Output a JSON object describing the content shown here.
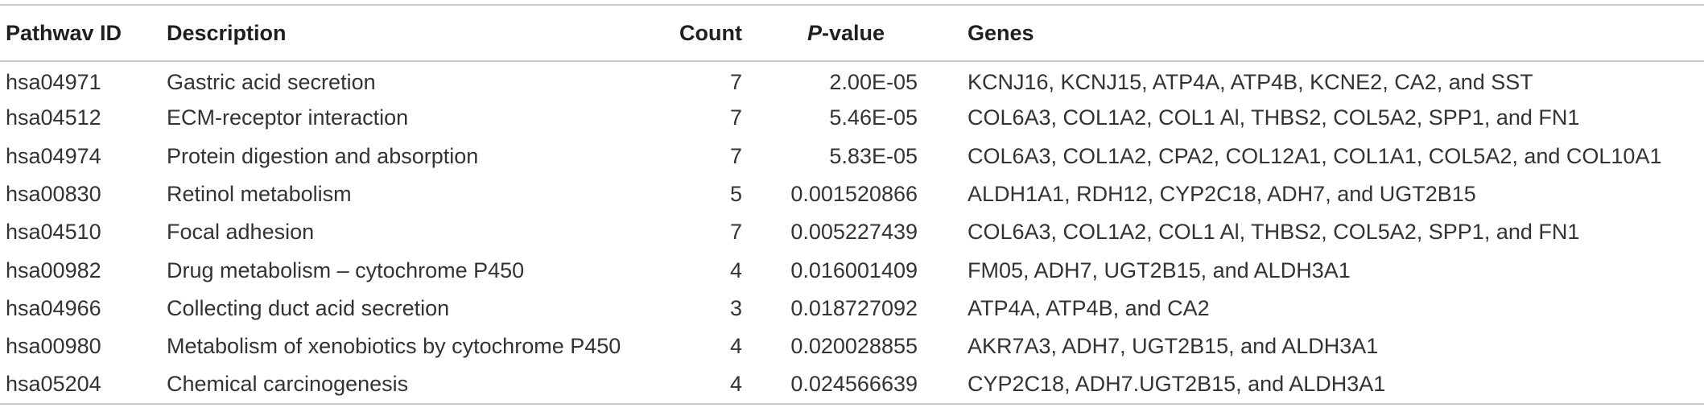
{
  "table": {
    "headers": {
      "pathway_id": "Pathwav ID",
      "description": "Description",
      "count": "Count",
      "pvalue_p": "P",
      "pvalue_rest": "-value",
      "genes": "Genes"
    },
    "rows": [
      {
        "id": "hsa04971",
        "description": "Gastric acid secretion",
        "count": "7",
        "pvalue": "2.00E-05",
        "genes": "KCNJ16, KCNJ15, ATP4A, ATP4B, KCNE2, CA2, and SST"
      },
      {
        "id": "hsa04512",
        "description": "ECM-receptor interaction",
        "count": "7",
        "pvalue": "5.46E-05",
        "genes": "COL6A3, COL1A2, COL1 Al, THBS2, COL5A2, SPP1, and FN1"
      },
      {
        "id": "hsa04974",
        "description": "Protein digestion and absorption",
        "count": "7",
        "pvalue": "5.83E-05",
        "genes": "COL6A3, COL1A2, CPA2, COL12A1, COL1A1, COL5A2, and COL10A1"
      },
      {
        "id": "hsa00830",
        "description": "Retinol metabolism",
        "count": "5",
        "pvalue": "0.001520866",
        "genes": "ALDH1A1, RDH12, CYP2C18, ADH7, and UGT2B15"
      },
      {
        "id": "hsa04510",
        "description": "Focal adhesion",
        "count": "7",
        "pvalue": "0.005227439",
        "genes": "COL6A3, COL1A2, COL1 Al, THBS2, COL5A2, SPP1, and FN1"
      },
      {
        "id": "hsa00982",
        "description": "Drug metabolism – cytochrome P450",
        "count": "4",
        "pvalue": "0.016001409",
        "genes": "FM05, ADH7, UGT2B15, and ALDH3A1"
      },
      {
        "id": "hsa04966",
        "description": "Collecting duct acid secretion",
        "count": "3",
        "pvalue": "0.018727092",
        "genes": "ATP4A, ATP4B, and CA2"
      },
      {
        "id": "hsa00980",
        "description": "Metabolism of xenobiotics by cytochrome P450",
        "count": "4",
        "pvalue": "0.020028855",
        "genes": "AKR7A3, ADH7, UGT2B15, and ALDH3A1"
      },
      {
        "id": "hsa05204",
        "description": "Chemical carcinogenesis",
        "count": "4",
        "pvalue": "0.024566639",
        "genes": "CYP2C18, ADH7.UGT2B15, and ALDH3A1"
      }
    ]
  }
}
